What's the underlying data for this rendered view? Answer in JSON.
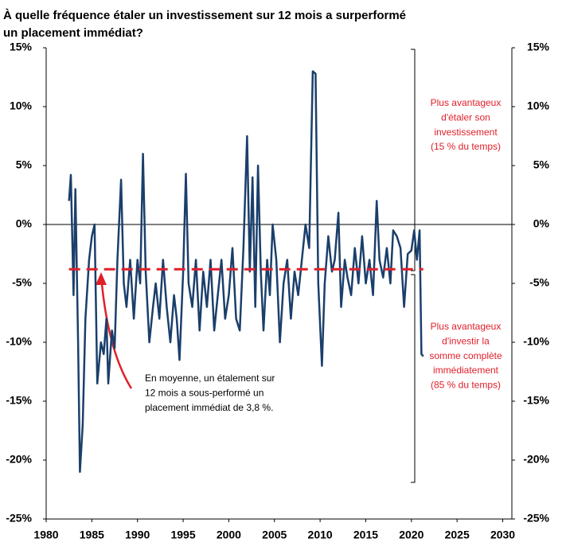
{
  "chart_data": {
    "type": "line",
    "title": [
      "À quelle fréquence étaler un investissement sur 12 mois a surperformé",
      "un placement immédiat?"
    ],
    "x": [
      1982.5,
      1982.7,
      1983.0,
      1983.2,
      1983.5,
      1983.7,
      1984.0,
      1984.3,
      1984.7,
      1985.0,
      1985.3,
      1985.6,
      1986.0,
      1986.3,
      1986.6,
      1986.8,
      1987.2,
      1987.5,
      1987.8,
      1988.2,
      1988.5,
      1988.8,
      1989.2,
      1989.6,
      1990.0,
      1990.3,
      1990.6,
      1990.9,
      1991.3,
      1991.7,
      1992.0,
      1992.4,
      1992.8,
      1993.2,
      1993.6,
      1994.0,
      1994.3,
      1994.6,
      1995.0,
      1995.3,
      1995.6,
      1996.0,
      1996.4,
      1996.8,
      1997.2,
      1997.6,
      1998.0,
      1998.4,
      1998.8,
      1999.2,
      1999.6,
      2000.0,
      2000.4,
      2000.8,
      2001.2,
      2001.6,
      2002.0,
      2002.3,
      2002.6,
      2002.9,
      2003.2,
      2003.5,
      2003.8,
      2004.2,
      2004.5,
      2004.8,
      2005.2,
      2005.6,
      2006.0,
      2006.4,
      2006.8,
      2007.2,
      2007.6,
      2008.0,
      2008.4,
      2008.8,
      2009.2,
      2009.5,
      2009.8,
      2010.2,
      2010.5,
      2010.9,
      2011.3,
      2011.6,
      2012.0,
      2012.3,
      2012.7,
      2013.0,
      2013.4,
      2013.8,
      2014.2,
      2014.6,
      2015.0,
      2015.4,
      2015.8,
      2016.2,
      2016.5,
      2016.9,
      2017.3,
      2017.7,
      2018.0,
      2018.4,
      2018.8,
      2019.2,
      2019.6,
      2020.0,
      2020.3,
      2020.6,
      2020.9,
      2021.1,
      2021.3
    ],
    "series": [
      {
        "color": "#1b3f6b",
        "values": [
          2,
          4.2,
          -6,
          3,
          -10,
          -21,
          -17,
          -8,
          -3,
          -1,
          0,
          -13.5,
          -10,
          -11,
          -8,
          -13.5,
          -9,
          -10.5,
          -3,
          3.8,
          -5,
          -7,
          -3,
          -8,
          -3,
          -5,
          6,
          -4,
          -10,
          -7,
          -5,
          -8,
          -3,
          -7,
          -10,
          -6,
          -8,
          -11.5,
          -4,
          4.3,
          -5,
          -7,
          -3,
          -9,
          -4,
          -7,
          -3,
          -9,
          -6,
          -3,
          -8,
          -6,
          -2,
          -8,
          -9,
          -2,
          7.5,
          -4,
          4,
          -7,
          5,
          -4,
          -9,
          -3,
          -6,
          0,
          -3,
          -10,
          -5,
          -3,
          -8,
          -4,
          -6,
          -3,
          0,
          -2,
          13,
          12.8,
          -5,
          -12,
          -5,
          -1,
          -4,
          -3,
          1,
          -7,
          -3,
          -4.5,
          -6,
          -2,
          -5,
          -1,
          -5,
          -3,
          -6,
          2,
          -3,
          -4.5,
          -2,
          -5,
          -0.5,
          -1,
          -2,
          -7,
          -2.5,
          -2.2,
          -0.5,
          -3,
          -0.5,
          -11,
          -11.2
        ]
      }
    ],
    "mean": {
      "value": -3.8,
      "color": "#e0202a"
    },
    "xlim": [
      1980,
      2031
    ],
    "xticks": [
      1980,
      1985,
      1990,
      1995,
      2000,
      2005,
      2010,
      2015,
      2020,
      2025,
      2030
    ],
    "ylim": [
      -25,
      15
    ],
    "yticks": [
      {
        "value": 15,
        "label": "15%"
      },
      {
        "value": 10,
        "label": "10%"
      },
      {
        "value": 5,
        "label": "5%"
      },
      {
        "value": 0,
        "label": "0%"
      },
      {
        "value": -5,
        "label": "-5%"
      },
      {
        "value": -10,
        "label": "-10%"
      },
      {
        "value": -15,
        "label": "-15%"
      },
      {
        "value": -20,
        "label": "-20%"
      },
      {
        "value": -25,
        "label": "-25%"
      }
    ],
    "y2lim": [
      -25,
      15
    ],
    "y2ticks": [
      {
        "value": 15,
        "label": "15%"
      },
      {
        "value": 10,
        "label": "10%"
      },
      {
        "value": 5,
        "label": "5%"
      },
      {
        "value": 0,
        "label": "0%"
      },
      {
        "value": -5,
        "label": "-5%"
      },
      {
        "value": -10,
        "label": "-10%"
      },
      {
        "value": -15,
        "label": "-15%"
      },
      {
        "value": -20,
        "label": "-20%"
      },
      {
        "value": -25,
        "label": "-25%"
      }
    ],
    "annotations": [
      {
        "lines": [
          "En moyenne, un étalement sur",
          "12 mois a sous-performé un",
          "placement immédiat de 3,8 %."
        ]
      },
      {
        "lines": [
          "Plus avantageux",
          "d'étaler son",
          "investissement",
          "(15 % du temps)"
        ]
      },
      {
        "lines": [
          "Plus avantageux",
          "d'investir la",
          "somme complète",
          "immédiatement",
          "(85 % du temps)"
        ]
      }
    ]
  }
}
